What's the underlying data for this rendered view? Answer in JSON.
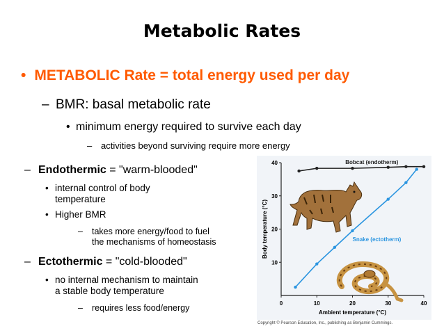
{
  "slide": {
    "title": "Metabolic Rates",
    "bullet1": "METABOLIC Rate = total energy used per day",
    "sub1": "BMR: basal metabolic rate",
    "sub1a": "minimum energy required to survive each day",
    "sub1a1": "activities beyond surviving require more energy",
    "endo": {
      "term": "Endothermic",
      "rest": " = \"warm-blooded\"",
      "b1_line1": "internal control of body",
      "b1_line2": "temperature",
      "b2": "Higher BMR",
      "b2a_line1": "takes more energy/food to fuel",
      "b2a_line2": "the mechanisms of homeostasis"
    },
    "ecto": {
      "term": "Ectothermic",
      "rest": " = \"cold-blooded\"",
      "b1_line1": "no internal mechanism to maintain",
      "b1_line2": "a stable body temperature",
      "b1a": "requires less food/energy"
    },
    "dash": "–",
    "dot": "•",
    "big_dot": "•"
  },
  "figure": {
    "copyright": "Copyright © Pearson Education, Inc., publishing as Benjamin Cummings.",
    "animals": [
      "bobcat-illustration",
      "snake-illustration"
    ]
  },
  "chart_data": {
    "type": "line",
    "xlabel": "Ambient temperature (°C)",
    "ylabel": "Body temperature (°C)",
    "xlim": [
      0,
      40
    ],
    "ylim": [
      0,
      40
    ],
    "xticks": [
      0,
      10,
      20,
      30,
      40
    ],
    "yticks": [
      10,
      20,
      30,
      40
    ],
    "series": [
      {
        "name": "Bobcat (endotherm)",
        "color": "#222222",
        "x": [
          5,
          10,
          20,
          30,
          35,
          40
        ],
        "y": [
          37.5,
          38.3,
          38.3,
          38.6,
          38.8,
          38.8
        ]
      },
      {
        "name": "Snake (ectotherm)",
        "color": "#2b95e0",
        "x": [
          4,
          10,
          15,
          20,
          30,
          35,
          38
        ],
        "y": [
          2.5,
          9.5,
          14.5,
          19.5,
          29,
          34,
          38
        ]
      }
    ]
  }
}
